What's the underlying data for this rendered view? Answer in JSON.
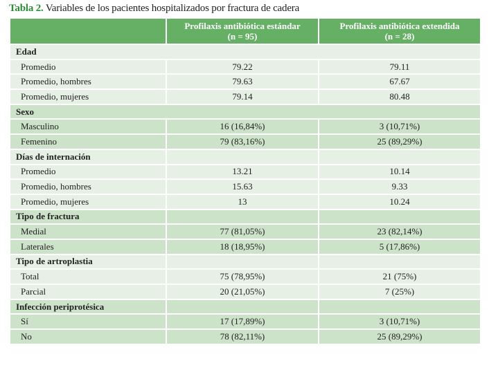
{
  "title": {
    "label": "Tabla 2.",
    "text": " Variables de los pacientes hospitalizados por fractura de cadera"
  },
  "colors": {
    "header": "#66b066",
    "light": "#e6f0e4",
    "dark": "#cde3c9",
    "title_label": "#2e8b3a"
  },
  "headers": [
    {
      "line1": "",
      "line2": ""
    },
    {
      "line1": "Profilaxis antibiótica estándar",
      "line2": "(n = 95)"
    },
    {
      "line1": "Profilaxis antibiótica extendida",
      "line2": "(n = 28)"
    }
  ],
  "sections": [
    {
      "name": "Edad",
      "shade": "light",
      "span": true,
      "rows": [
        [
          "Promedio",
          "79.22",
          "79.11"
        ],
        [
          "Promedio, hombres",
          "79.63",
          "67.67"
        ],
        [
          "Promedio, mujeres",
          "79.14",
          "80.48"
        ]
      ]
    },
    {
      "name": "Sexo",
      "shade": "dark",
      "span": true,
      "rows": [
        [
          "Masculino",
          "16 (16,84%)",
          "3 (10,71%)"
        ],
        [
          "Femenino",
          "79 (83,16%)",
          "25 (89,29%)"
        ]
      ]
    },
    {
      "name": "Días de internación",
      "shade": "light",
      "span": false,
      "rows": [
        [
          "Promedio",
          "13.21",
          "10.14"
        ],
        [
          "Promedio, hombres",
          "15.63",
          "9.33"
        ],
        [
          "Promedio, mujeres",
          "13",
          "10.24"
        ]
      ]
    },
    {
      "name": "Tipo de fractura",
      "shade": "dark",
      "span": false,
      "rows": [
        [
          "Medial",
          "77 (81,05%)",
          "23 (82,14%)"
        ],
        [
          "Laterales",
          "18 (18,95%)",
          "5 (17,86%)"
        ]
      ]
    },
    {
      "name": "Tipo de artroplastia",
      "shade": "light",
      "span": false,
      "rows": [
        [
          "Total",
          "75 (78,95%)",
          "21 (75%)"
        ],
        [
          "Parcial",
          "20 (21,05%)",
          "7 (25%)"
        ]
      ]
    },
    {
      "name": "Infección periprotésica",
      "shade": "dark",
      "span": false,
      "rows": [
        [
          "Sí",
          "17 (17,89%)",
          "3 (10,71%)"
        ],
        [
          "No",
          "78 (82,11%)",
          "25 (89,29%)"
        ]
      ]
    }
  ]
}
